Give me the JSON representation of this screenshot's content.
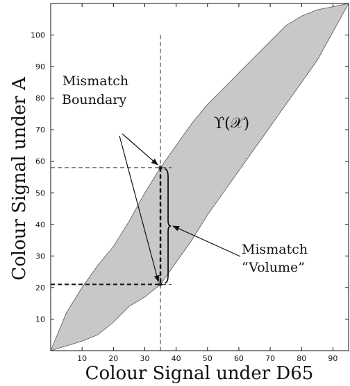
{
  "chart_data": {
    "type": "area",
    "xlabel": "Colour Signal under D65",
    "ylabel": "Colour Signal under A",
    "xlim": [
      0,
      95
    ],
    "ylim": [
      0,
      110
    ],
    "x_ticks": [
      10,
      20,
      30,
      40,
      50,
      60,
      70,
      80,
      90
    ],
    "y_ticks": [
      10,
      20,
      30,
      40,
      50,
      60,
      70,
      80,
      90,
      100
    ],
    "grid": false,
    "series": [
      {
        "role": "region",
        "fill_color": "#c8c8c8",
        "upper_boundary": {
          "x": [
            0,
            5,
            10,
            15,
            20,
            25,
            30,
            35,
            40,
            45,
            50,
            55,
            60,
            65,
            70,
            75,
            80,
            85,
            90,
            95
          ],
          "y": [
            0,
            12,
            20,
            27,
            33,
            41,
            50,
            58,
            65,
            72,
            78,
            83,
            88,
            93,
            98,
            103,
            106,
            108,
            109,
            110
          ]
        },
        "lower_boundary": {
          "x": [
            0,
            10,
            15,
            20,
            25,
            30,
            35,
            40,
            45,
            50,
            55,
            60,
            65,
            70,
            75,
            80,
            85,
            90,
            95
          ],
          "y": [
            0,
            3,
            5,
            9,
            14,
            17,
            21,
            28,
            35,
            43,
            50,
            57,
            64,
            71,
            78,
            85,
            92,
            101,
            110
          ]
        }
      }
    ],
    "points": [
      {
        "x": 35,
        "y": 58
      },
      {
        "x": 35,
        "y": 21
      }
    ],
    "guide_lines": {
      "vertical_x": 35,
      "horizontal_y": [
        58,
        21
      ]
    },
    "annotations": {
      "region_label": "ϒ(𝒳)",
      "boundary_label_line1": "Mismatch",
      "boundary_label_line2": "Boundary",
      "volume_label_line1": "Mismatch",
      "volume_label_line2": "“Volume”"
    },
    "colors": {
      "region": "#c8c8c8",
      "ink": "#111111"
    }
  }
}
